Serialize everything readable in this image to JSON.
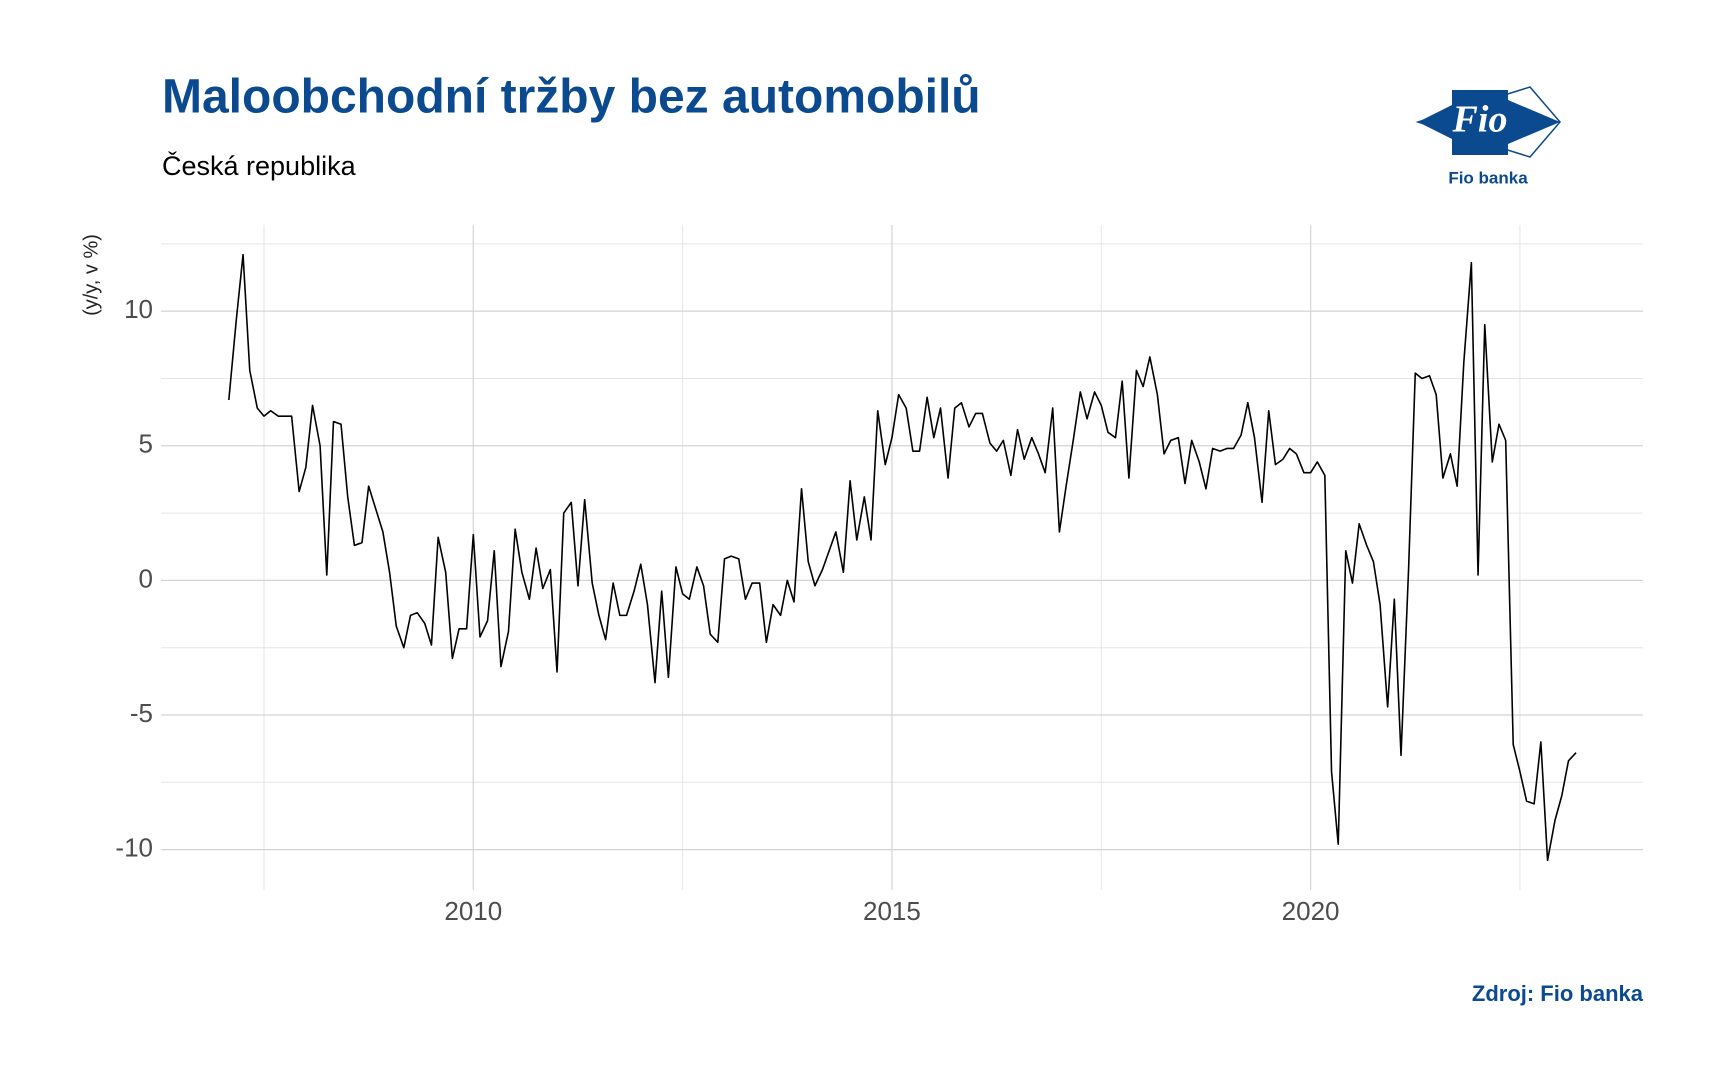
{
  "chart_data": {
    "type": "line",
    "title": "Maloobchodní tržby bez automobilů",
    "subtitle": "Česká republika",
    "y_label": "(y/y, v %)",
    "source": "Zdroj: Fio banka",
    "logo": {
      "text": "Fio",
      "caption": "Fio banka"
    },
    "xlim": [
      2006.27,
      2023.97
    ],
    "ylim": [
      -11.5,
      13.2
    ],
    "xticks": [
      2010,
      2015,
      2020
    ],
    "yticks": [
      -10,
      -5,
      0,
      5,
      10
    ],
    "grid": true,
    "minor_grid": true,
    "x": [
      2007.08,
      2007.17,
      2007.25,
      2007.33,
      2007.42,
      2007.5,
      2007.58,
      2007.67,
      2007.75,
      2007.83,
      2007.92,
      2008,
      2008.08,
      2008.17,
      2008.25,
      2008.33,
      2008.42,
      2008.5,
      2008.58,
      2008.67,
      2008.75,
      2008.83,
      2008.92,
      2009,
      2009.08,
      2009.17,
      2009.25,
      2009.33,
      2009.42,
      2009.5,
      2009.58,
      2009.67,
      2009.75,
      2009.83,
      2009.92,
      2010,
      2010.08,
      2010.17,
      2010.25,
      2010.33,
      2010.42,
      2010.5,
      2010.58,
      2010.67,
      2010.75,
      2010.83,
      2010.92,
      2011,
      2011.08,
      2011.17,
      2011.25,
      2011.33,
      2011.42,
      2011.5,
      2011.58,
      2011.67,
      2011.75,
      2011.83,
      2011.92,
      2012,
      2012.08,
      2012.17,
      2012.25,
      2012.33,
      2012.42,
      2012.5,
      2012.58,
      2012.67,
      2012.75,
      2012.83,
      2012.92,
      2013,
      2013.08,
      2013.17,
      2013.25,
      2013.33,
      2013.42,
      2013.5,
      2013.58,
      2013.67,
      2013.75,
      2013.83,
      2013.92,
      2014,
      2014.08,
      2014.17,
      2014.25,
      2014.33,
      2014.42,
      2014.5,
      2014.58,
      2014.67,
      2014.75,
      2014.83,
      2014.92,
      2015,
      2015.08,
      2015.17,
      2015.25,
      2015.33,
      2015.42,
      2015.5,
      2015.58,
      2015.67,
      2015.75,
      2015.83,
      2015.92,
      2016,
      2016.08,
      2016.17,
      2016.25,
      2016.33,
      2016.42,
      2016.5,
      2016.58,
      2016.67,
      2016.75,
      2016.83,
      2016.92,
      2017,
      2017.08,
      2017.17,
      2017.25,
      2017.33,
      2017.42,
      2017.5,
      2017.58,
      2017.67,
      2017.75,
      2017.83,
      2017.92,
      2018,
      2018.08,
      2018.17,
      2018.25,
      2018.33,
      2018.42,
      2018.5,
      2018.58,
      2018.67,
      2018.75,
      2018.83,
      2018.92,
      2019,
      2019.08,
      2019.17,
      2019.25,
      2019.33,
      2019.42,
      2019.5,
      2019.58,
      2019.67,
      2019.75,
      2019.83,
      2019.92,
      2020,
      2020.08,
      2020.17,
      2020.25,
      2020.33,
      2020.42,
      2020.5,
      2020.58,
      2020.67,
      2020.75,
      2020.83,
      2020.92,
      2021,
      2021.08,
      2021.17,
      2021.25,
      2021.33,
      2021.42,
      2021.5,
      2021.58,
      2021.67,
      2021.75,
      2021.83,
      2021.92,
      2022,
      2022.08,
      2022.17,
      2022.25,
      2022.33,
      2022.42,
      2022.5,
      2022.58,
      2022.67,
      2022.75,
      2022.83,
      2022.92,
      2023,
      2023.08,
      2023.17
    ],
    "series": [
      {
        "color": "#000000",
        "values": [
          6.7,
          9.7,
          12.1,
          7.8,
          6.4,
          6.1,
          6.3,
          6.1,
          6.1,
          6.1,
          3.3,
          4.2,
          6.5,
          5.0,
          0.2,
          5.9,
          5.8,
          3.1,
          1.3,
          1.4,
          3.5,
          2.7,
          1.8,
          0.3,
          -1.7,
          -2.5,
          -1.3,
          -1.2,
          -1.6,
          -2.4,
          1.6,
          0.3,
          -2.9,
          -1.8,
          -1.8,
          1.7,
          -2.1,
          -1.5,
          1.1,
          -3.2,
          -1.9,
          1.9,
          0.3,
          -0.7,
          1.2,
          -0.3,
          0.4,
          -3.4,
          2.5,
          2.9,
          -0.2,
          3.0,
          -0.1,
          -1.3,
          -2.2,
          -0.1,
          -1.3,
          -1.3,
          -0.4,
          0.6,
          -0.9,
          -3.8,
          -0.4,
          -3.6,
          0.5,
          -0.5,
          -0.7,
          0.5,
          -0.2,
          -2.0,
          -2.3,
          0.8,
          0.9,
          0.8,
          -0.7,
          -0.1,
          -0.1,
          -2.3,
          -0.9,
          -1.3,
          0.0,
          -0.8,
          3.4,
          0.7,
          -0.2,
          0.4,
          1.1,
          1.8,
          0.3,
          3.7,
          1.5,
          3.1,
          1.5,
          6.3,
          4.3,
          5.3,
          6.9,
          6.4,
          4.8,
          4.8,
          6.8,
          5.3,
          6.4,
          3.8,
          6.4,
          6.6,
          5.7,
          6.2,
          6.2,
          5.1,
          4.8,
          5.2,
          3.9,
          5.6,
          4.5,
          5.3,
          4.7,
          4.0,
          6.4,
          1.8,
          3.5,
          5.3,
          7.0,
          6.0,
          7.0,
          6.5,
          5.5,
          5.3,
          7.4,
          3.8,
          7.8,
          7.2,
          8.3,
          6.9,
          4.7,
          5.2,
          5.3,
          3.6,
          5.2,
          4.4,
          3.4,
          4.9,
          4.8,
          4.9,
          4.9,
          5.4,
          6.6,
          5.3,
          2.9,
          6.3,
          4.3,
          4.5,
          4.9,
          4.7,
          4.0,
          4.0,
          4.4,
          3.9,
          -7.1,
          -9.8,
          1.1,
          -0.1,
          2.1,
          1.3,
          0.7,
          -0.9,
          -4.7,
          -0.7,
          -6.5,
          0.4,
          7.7,
          7.5,
          7.6,
          6.9,
          3.8,
          4.7,
          3.5,
          8.1,
          11.8,
          0.2,
          9.5,
          4.4,
          5.8,
          5.2,
          -6.1,
          -7.1,
          -8.2,
          -8.3,
          -6.0,
          -10.4,
          -8.9,
          -8.0,
          -6.7,
          -6.4
        ]
      }
    ]
  }
}
